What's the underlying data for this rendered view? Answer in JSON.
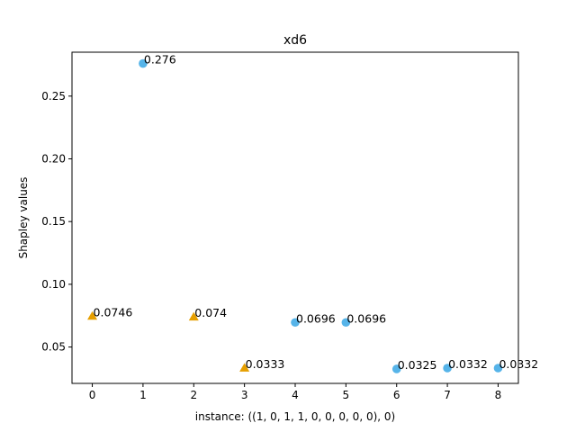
{
  "chart_data": {
    "type": "scatter",
    "title": "xd6",
    "xlabel": "instance: ((1, 0, 1, 1, 0, 0, 0, 0, 0), 0)",
    "ylabel": "Shapley values",
    "xlim": [
      -0.4,
      8.4
    ],
    "ylim": [
      0.021,
      0.285
    ],
    "x_ticks": [
      0,
      1,
      2,
      3,
      4,
      5,
      6,
      7,
      8
    ],
    "x_tick_labels": [
      "0",
      "1",
      "2",
      "3",
      "4",
      "5",
      "6",
      "7",
      "8"
    ],
    "y_ticks": [
      0.05,
      0.1,
      0.15,
      0.2,
      0.25
    ],
    "y_tick_labels": [
      "0.05",
      "0.10",
      "0.15",
      "0.20",
      "0.25"
    ],
    "grid": false,
    "series": [
      {
        "marker": "circle",
        "color": "#56B4E9",
        "points": [
          {
            "x": 1,
            "y": 0.276,
            "label": "0.276"
          },
          {
            "x": 4,
            "y": 0.0696,
            "label": "0.0696"
          },
          {
            "x": 5,
            "y": 0.0696,
            "label": "0.0696"
          },
          {
            "x": 6,
            "y": 0.0325,
            "label": "0.0325"
          },
          {
            "x": 7,
            "y": 0.0332,
            "label": "0.0332"
          },
          {
            "x": 8,
            "y": 0.0332,
            "label": "0.0332"
          }
        ]
      },
      {
        "marker": "triangle",
        "color": "#E69F00",
        "points": [
          {
            "x": 0,
            "y": 0.0746,
            "label": "0.0746"
          },
          {
            "x": 2,
            "y": 0.074,
            "label": "0.074"
          },
          {
            "x": 3,
            "y": 0.0333,
            "label": "0.0333"
          }
        ]
      }
    ]
  }
}
